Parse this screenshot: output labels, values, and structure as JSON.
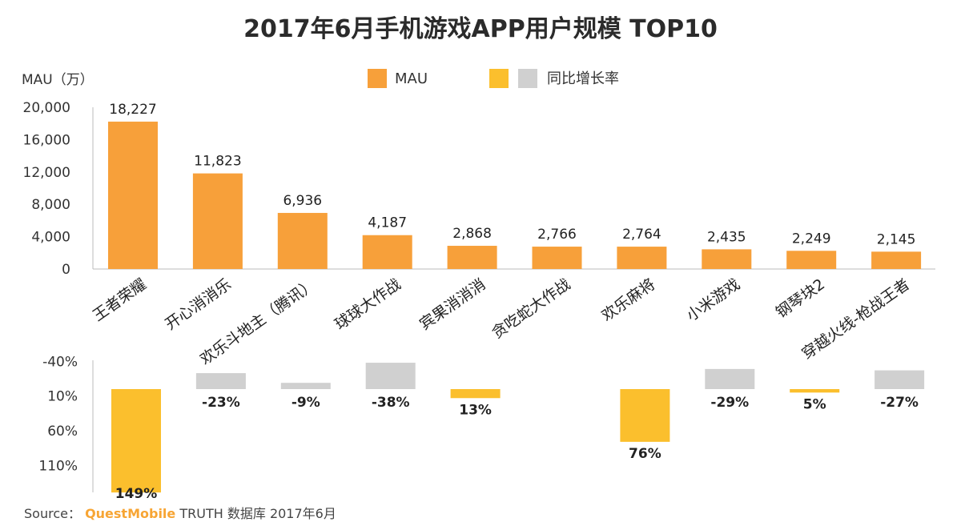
{
  "chart_data": {
    "type": "bar",
    "title": "2017年6月手机游戏APP用户规模 TOP10",
    "ylabel": "MAU（万）",
    "legend": [
      "MAU",
      "同比增长率"
    ],
    "categories": [
      "王者荣耀",
      "开心消消乐",
      "欢乐斗地主（腾讯）",
      "球球大作战",
      "宾果消消消",
      "贪吃蛇大作战",
      "欢乐麻将",
      "小米游戏",
      "钢琴块2",
      "穿越火线-枪战王者"
    ],
    "mau": {
      "ylim": [
        0,
        20000
      ],
      "ticks": [
        "20,000",
        "16,000",
        "12,000",
        "8,000",
        "4,000",
        "0"
      ],
      "tick_values": [
        20000,
        16000,
        12000,
        8000,
        4000,
        0
      ],
      "values": [
        18227,
        11823,
        6936,
        4187,
        2868,
        2766,
        2764,
        2435,
        2249,
        2145
      ],
      "labels": [
        "18,227",
        "11,823",
        "6,936",
        "4,187",
        "2,868",
        "2,766",
        "2,764",
        "2,435",
        "2,249",
        "2,145"
      ]
    },
    "growth": {
      "ticks": [
        "-40%",
        "10%",
        "60%",
        "110%"
      ],
      "tick_values": [
        -40,
        10,
        60,
        110
      ],
      "values": [
        149,
        -23,
        -9,
        -38,
        13,
        null,
        76,
        -29,
        5,
        -27
      ],
      "labels": [
        "149%",
        "-23%",
        "-9%",
        "-38%",
        "13%",
        "",
        "76%",
        "-29%",
        "5%",
        "-27%"
      ]
    },
    "colors": {
      "mau": "#f7a03a",
      "growth_positive": "#fbbf2d",
      "growth_negative": "#d0d0d0"
    }
  },
  "source": {
    "prefix": "Source：",
    "brand": "QuestMobile",
    "rest": "TRUTH 数据库 2017年6月"
  }
}
